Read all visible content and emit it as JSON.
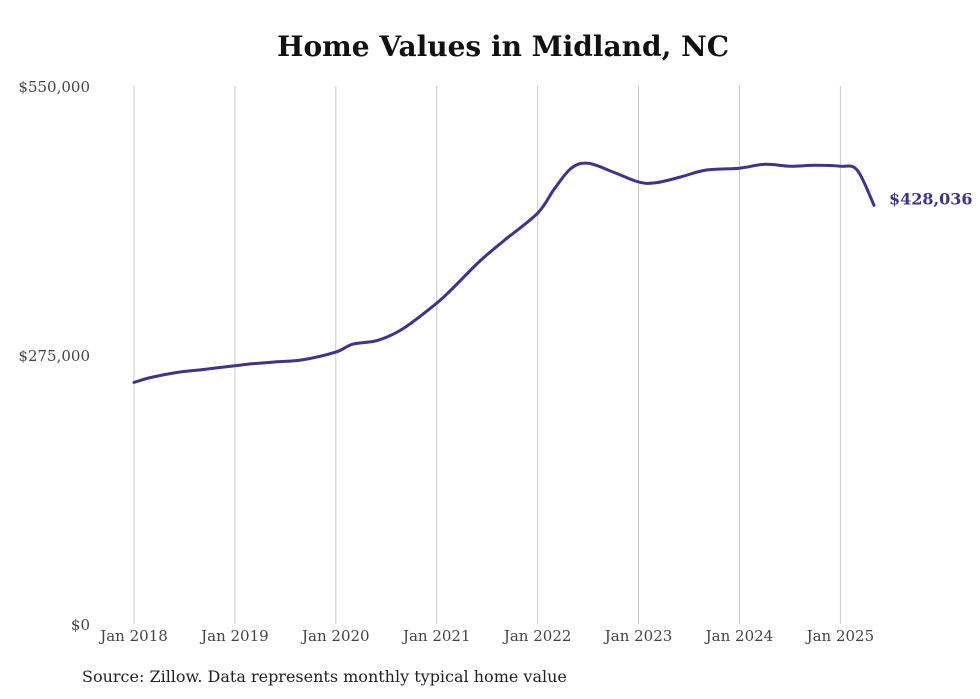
{
  "chart_data": {
    "type": "line",
    "title": "Home Values in Midland, NC",
    "xlabel": "",
    "ylabel": "",
    "x_range": [
      "2018-01",
      "2025-05"
    ],
    "ylim": [
      0,
      550000
    ],
    "y_ticks": [
      0,
      275000,
      550000
    ],
    "y_tick_labels": [
      "$0",
      "$275,000",
      "$550,000"
    ],
    "x_ticks": [
      "2018-01",
      "2019-01",
      "2020-01",
      "2021-01",
      "2022-01",
      "2023-01",
      "2024-01",
      "2025-01"
    ],
    "x_tick_labels": [
      "Jan 2018",
      "Jan 2019",
      "Jan 2020",
      "Jan 2021",
      "Jan 2022",
      "Jan 2023",
      "Jan 2024",
      "Jan 2025"
    ],
    "grid": "vertical",
    "line_color": "#3d348b",
    "end_label": "$428,036",
    "series": [
      {
        "x": [
          "2018-01",
          "2018-03",
          "2018-06",
          "2018-09",
          "2019-01",
          "2019-03",
          "2019-06",
          "2019-09",
          "2020-01",
          "2020-03",
          "2020-06",
          "2020-09",
          "2021-01",
          "2021-03",
          "2021-06",
          "2021-09",
          "2022-01",
          "2022-03",
          "2022-05",
          "2022-07",
          "2022-10",
          "2023-01",
          "2023-03",
          "2023-06",
          "2023-09",
          "2024-01",
          "2024-04",
          "2024-07",
          "2024-10",
          "2025-01",
          "2025-03",
          "2025-05"
        ],
        "values": [
          247000,
          252000,
          257000,
          260000,
          264000,
          266000,
          268000,
          270000,
          278000,
          286000,
          290000,
          302000,
          328000,
          344000,
          370000,
          392000,
          420000,
          445000,
          466000,
          471000,
          462000,
          452000,
          451000,
          457000,
          464000,
          466000,
          470000,
          468000,
          469000,
          468000,
          464000,
          428036
        ]
      }
    ]
  },
  "source": "Source: Zillow. Data represents monthly typical home value"
}
